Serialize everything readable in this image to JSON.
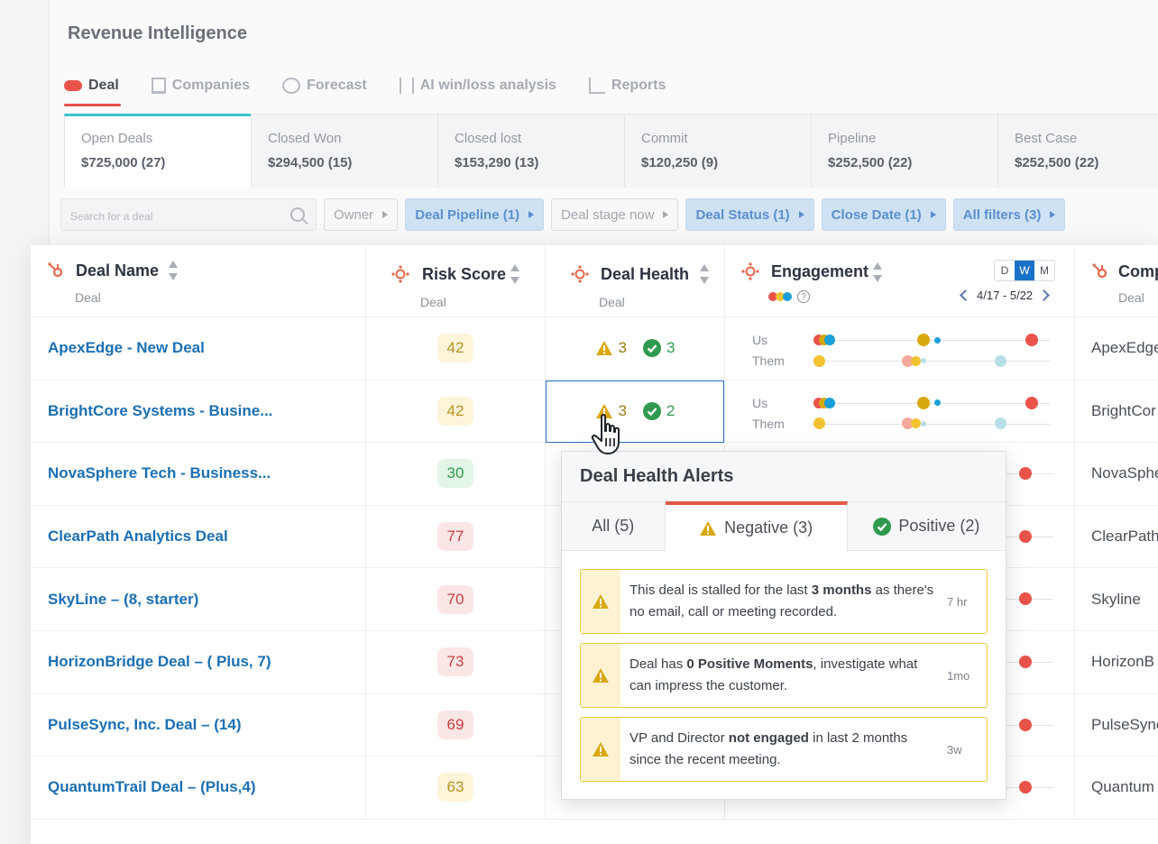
{
  "app_title": "Revenue Intelligence",
  "nav": [
    {
      "label": "Deal",
      "icon": "deal-icon",
      "active": true
    },
    {
      "label": "Companies",
      "icon": "building-icon"
    },
    {
      "label": "Forecast",
      "icon": "clock-icon"
    },
    {
      "label": "AI win/loss analysis",
      "icon": "sliders-icon"
    },
    {
      "label": "Reports",
      "icon": "chart-icon"
    }
  ],
  "stats": [
    {
      "label": "Open Deals",
      "value": "$725,000 (27)"
    },
    {
      "label": "Closed Won",
      "value": "$294,500 (15)"
    },
    {
      "label": "Closed lost",
      "value": "$153,290 (13)"
    },
    {
      "label": "Commit",
      "value": "$120,250 (9)"
    },
    {
      "label": "Pipeline",
      "value": "$252,500 (22)"
    },
    {
      "label": "Best Case",
      "value": "$252,500 (22)"
    }
  ],
  "search": {
    "placeholder": "Search for a deal"
  },
  "filters": [
    {
      "label": "Owner",
      "style": "plain"
    },
    {
      "label": "Deal Pipeline (1)",
      "style": "blue"
    },
    {
      "label": "Deal stage now",
      "style": "plain"
    },
    {
      "label": "Deal Status (1)",
      "style": "blue"
    },
    {
      "label": "Close Date (1)",
      "style": "blue"
    },
    {
      "label": "All filters (3)",
      "style": "blue"
    }
  ],
  "columns": {
    "deal_name": {
      "title": "Deal Name",
      "sub": "Deal"
    },
    "risk_score": {
      "title": "Risk Score",
      "sub": "Deal"
    },
    "deal_health": {
      "title": "Deal Health",
      "sub": "Deal"
    },
    "engagement": {
      "title": "Engagement",
      "range": "4/17 - 5/22",
      "periods": [
        "D",
        "W",
        "M"
      ],
      "active_period": "W"
    },
    "company": {
      "title": "Comp",
      "sub": "Deal"
    }
  },
  "engagement_labels": {
    "us": "Us",
    "them": "Them"
  },
  "rows": [
    {
      "name": "ApexEdge - New Deal",
      "risk": "42",
      "risk_level": "y",
      "neg": "3",
      "pos": "3",
      "company": "ApexEdge"
    },
    {
      "name": "BrightCore Systems - Busine...",
      "risk": "42",
      "risk_level": "y",
      "neg": "3",
      "pos": "2",
      "company": "BrightCor"
    },
    {
      "name": "NovaSphere Tech - Business...",
      "risk": "30",
      "risk_level": "g",
      "company": "NovaSphe"
    },
    {
      "name": "ClearPath Analytics Deal",
      "risk": "77",
      "risk_level": "r",
      "company": "ClearPath"
    },
    {
      "name": "SkyLine – (8, starter)",
      "risk": "70",
      "risk_level": "r",
      "company": "Skyline"
    },
    {
      "name": "HorizonBridge Deal – ( Plus, 7)",
      "risk": "73",
      "risk_level": "r",
      "company": "HorizonB"
    },
    {
      "name": "PulseSync, Inc. Deal – (14)",
      "risk": "69",
      "risk_level": "r",
      "company": "PulseSync"
    },
    {
      "name": "QuantumTrail Deal – (Plus,4)",
      "risk": "63",
      "risk_level": "y",
      "company": "Quantum"
    }
  ],
  "popup": {
    "title": "Deal Health Alerts",
    "tabs": [
      {
        "label": "All (5)"
      },
      {
        "label": "Negative (3)",
        "active": true
      },
      {
        "label": "Positive (2)"
      }
    ],
    "alerts": [
      {
        "pre": "This deal is stalled for the last ",
        "bold": "3 months",
        "post": " as there's no email, call or meeting recorded.",
        "time": "7 hr"
      },
      {
        "pre": "Deal has ",
        "bold": "0 Positive Moments",
        "post": ", investigate what can impress the customer.",
        "time": "1mo"
      },
      {
        "pre": "VP and Director ",
        "bold": "not engaged",
        "post": " in last 2 months since the recent meeting.",
        "time": "3w"
      }
    ]
  },
  "colors": {
    "link": "#1b6fb4",
    "accent": "#e9534a",
    "selected": "#2b72c4",
    "warning": "#d9a80f",
    "positive": "#2f9a4d"
  }
}
